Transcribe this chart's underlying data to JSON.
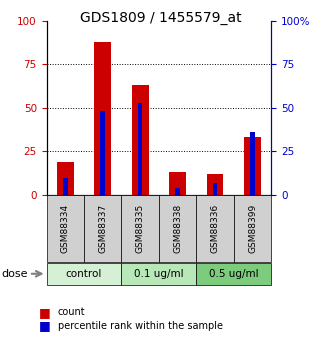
{
  "title": "GDS1809 / 1455579_at",
  "samples": [
    "GSM88334",
    "GSM88337",
    "GSM88335",
    "GSM88338",
    "GSM88336",
    "GSM88399"
  ],
  "count_values": [
    19,
    88,
    63,
    13,
    12,
    33
  ],
  "percentile_values": [
    10,
    48,
    53,
    4,
    7,
    36
  ],
  "groups": [
    {
      "label": "control",
      "indices": [
        0,
        1
      ],
      "color": "#d6f0d6"
    },
    {
      "label": "0.1 ug/ml",
      "indices": [
        2,
        3
      ],
      "color": "#b8e8b8"
    },
    {
      "label": "0.5 ug/ml",
      "indices": [
        4,
        5
      ],
      "color": "#7dcc7d"
    }
  ],
  "count_color": "#cc0000",
  "percentile_color": "#0000cc",
  "ylim": [
    0,
    100
  ],
  "yticks": [
    0,
    25,
    50,
    75,
    100
  ],
  "ytick_color_left": "#cc0000",
  "ytick_color_right": "#0000cc",
  "sample_box_color": "#d0d0d0",
  "legend_count_label": "count",
  "legend_percentile_label": "percentile rank within the sample",
  "dose_label": "dose"
}
